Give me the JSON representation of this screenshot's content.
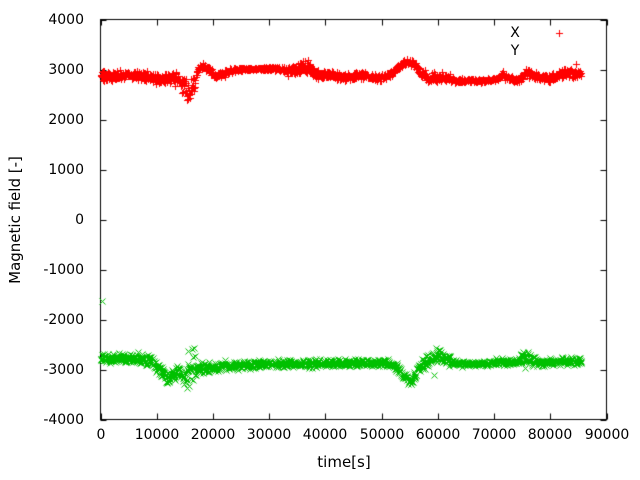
{
  "figure": {
    "background": "#ffffff",
    "border_color": "#000000",
    "text_color": "#000000"
  },
  "chart_data": {
    "type": "scatter",
    "title": "",
    "xlabel": "time[s]",
    "ylabel": "Magnetic field [-]",
    "xlim": [
      0,
      90000
    ],
    "ylim": [
      -4000,
      4000
    ],
    "xticks": [
      0,
      10000,
      20000,
      30000,
      40000,
      50000,
      60000,
      70000,
      80000,
      90000
    ],
    "yticks": [
      -4000,
      -3000,
      -2000,
      -1000,
      0,
      1000,
      2000,
      3000,
      4000
    ],
    "grid": false,
    "legend_position": "top-right-inside",
    "sample_step_s": 60,
    "t_start": 0,
    "t_end": 85500,
    "series": [
      {
        "name": "X",
        "color": "#ff0000",
        "marker": "plus",
        "legend_marker_visible": true,
        "trend": [
          [
            0,
            2870,
            120
          ],
          [
            2500,
            2880,
            120
          ],
          [
            5000,
            2910,
            110
          ],
          [
            7000,
            2860,
            120
          ],
          [
            9000,
            2840,
            130
          ],
          [
            10500,
            2810,
            130
          ],
          [
            12000,
            2840,
            120
          ],
          [
            13500,
            2860,
            120
          ],
          [
            14400,
            2760,
            200
          ],
          [
            15300,
            2560,
            260
          ],
          [
            16200,
            2580,
            260
          ],
          [
            16900,
            2800,
            180
          ],
          [
            17600,
            3040,
            100
          ],
          [
            18200,
            3090,
            80
          ],
          [
            19200,
            2990,
            90
          ],
          [
            20500,
            2870,
            90
          ],
          [
            21800,
            2930,
            80
          ],
          [
            23500,
            2980,
            60
          ],
          [
            25000,
            3010,
            45
          ],
          [
            28000,
            3020,
            40
          ],
          [
            31500,
            3010,
            45
          ],
          [
            33500,
            2980,
            90
          ],
          [
            34800,
            3000,
            150
          ],
          [
            36000,
            3030,
            180
          ],
          [
            37200,
            3050,
            150
          ],
          [
            38200,
            2920,
            130
          ],
          [
            39300,
            2860,
            110
          ],
          [
            40500,
            2920,
            110
          ],
          [
            41800,
            2880,
            100
          ],
          [
            43000,
            2840,
            100
          ],
          [
            44500,
            2850,
            90
          ],
          [
            46000,
            2880,
            85
          ],
          [
            47500,
            2870,
            85
          ],
          [
            49000,
            2830,
            90
          ],
          [
            50500,
            2850,
            85
          ],
          [
            52000,
            2940,
            80
          ],
          [
            53500,
            3090,
            75
          ],
          [
            54700,
            3170,
            70
          ],
          [
            55800,
            3100,
            80
          ],
          [
            57000,
            2940,
            90
          ],
          [
            58200,
            2810,
            110
          ],
          [
            59500,
            2840,
            120
          ],
          [
            60800,
            2870,
            110
          ],
          [
            62000,
            2800,
            95
          ],
          [
            63200,
            2780,
            65
          ],
          [
            64500,
            2775,
            45
          ],
          [
            66500,
            2775,
            40
          ],
          [
            68500,
            2780,
            40
          ],
          [
            70200,
            2800,
            55
          ],
          [
            71500,
            2890,
            95
          ],
          [
            72800,
            2820,
            75
          ],
          [
            74200,
            2780,
            55
          ],
          [
            75800,
            2930,
            115
          ],
          [
            77200,
            2890,
            95
          ],
          [
            78500,
            2830,
            75
          ],
          [
            80000,
            2830,
            80
          ],
          [
            81500,
            2890,
            105
          ],
          [
            83000,
            2960,
            110
          ],
          [
            84300,
            2900,
            95
          ],
          [
            85500,
            2930,
            70
          ]
        ],
        "outliers": [
          [
            84600,
            3120
          ]
        ]
      },
      {
        "name": "Y",
        "color": "#00c000",
        "marker": "cross",
        "legend_marker_visible": false,
        "trend": [
          [
            0,
            -2780,
            115
          ],
          [
            2500,
            -2770,
            110
          ],
          [
            5000,
            -2765,
            115
          ],
          [
            7500,
            -2775,
            110
          ],
          [
            9000,
            -2820,
            120
          ],
          [
            10000,
            -2950,
            130
          ],
          [
            11000,
            -3090,
            140
          ],
          [
            12200,
            -3160,
            150
          ],
          [
            13000,
            -3130,
            140
          ],
          [
            13700,
            -3030,
            130
          ],
          [
            14400,
            -3110,
            150
          ],
          [
            15100,
            -3210,
            170
          ],
          [
            15700,
            -2950,
            430
          ],
          [
            16400,
            -2850,
            420
          ],
          [
            17100,
            -2980,
            180
          ],
          [
            18000,
            -2960,
            120
          ],
          [
            20000,
            -2945,
            105
          ],
          [
            22500,
            -2935,
            95
          ],
          [
            25000,
            -2920,
            95
          ],
          [
            27500,
            -2905,
            90
          ],
          [
            30000,
            -2890,
            90
          ],
          [
            32500,
            -2875,
            90
          ],
          [
            35000,
            -2870,
            95
          ],
          [
            36800,
            -2880,
            115
          ],
          [
            38000,
            -2890,
            115
          ],
          [
            39500,
            -2870,
            95
          ],
          [
            41500,
            -2870,
            90
          ],
          [
            43500,
            -2865,
            85
          ],
          [
            45500,
            -2860,
            80
          ],
          [
            47500,
            -2865,
            80
          ],
          [
            49500,
            -2870,
            80
          ],
          [
            51500,
            -2880,
            85
          ],
          [
            52800,
            -2960,
            100
          ],
          [
            54000,
            -3160,
            120
          ],
          [
            55000,
            -3230,
            100
          ],
          [
            56000,
            -3110,
            120
          ],
          [
            57200,
            -2900,
            140
          ],
          [
            58400,
            -2780,
            150
          ],
          [
            59800,
            -2730,
            160
          ],
          [
            61000,
            -2760,
            150
          ],
          [
            62200,
            -2850,
            110
          ],
          [
            63500,
            -2875,
            65
          ],
          [
            65500,
            -2880,
            50
          ],
          [
            67500,
            -2880,
            50
          ],
          [
            69500,
            -2860,
            70
          ],
          [
            71000,
            -2835,
            90
          ],
          [
            72500,
            -2850,
            80
          ],
          [
            74000,
            -2830,
            90
          ],
          [
            75500,
            -2745,
            150
          ],
          [
            76800,
            -2810,
            120
          ],
          [
            78200,
            -2855,
            85
          ],
          [
            80000,
            -2850,
            85
          ],
          [
            82000,
            -2845,
            95
          ],
          [
            84000,
            -2840,
            95
          ],
          [
            85500,
            -2835,
            80
          ]
        ],
        "outliers": [
          [
            300,
            -1630
          ],
          [
            59400,
            -3100
          ]
        ]
      }
    ]
  }
}
